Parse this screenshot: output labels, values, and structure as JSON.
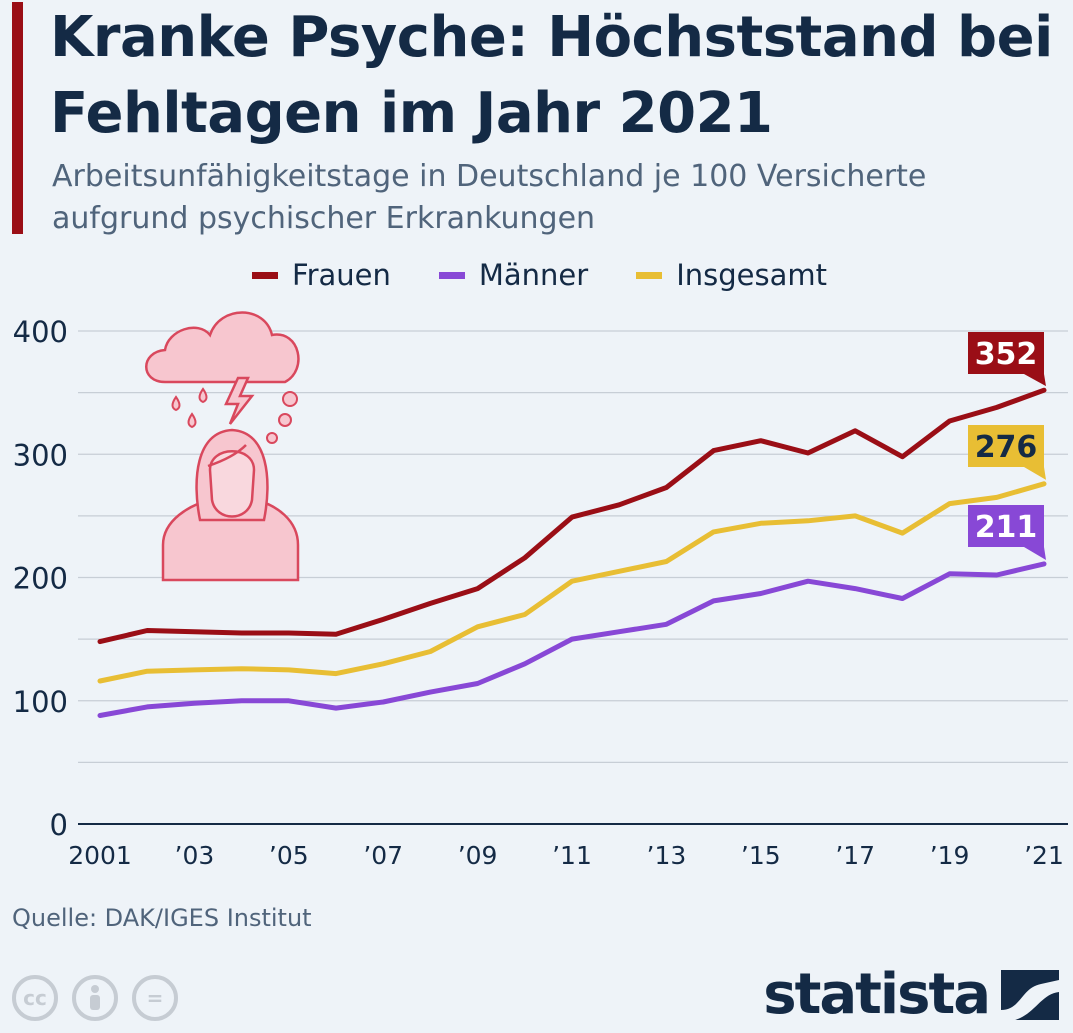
{
  "header": {
    "title": "Kranke Psyche: Höchststand bei Fehltagen im Jahr 2021",
    "subtitle": "Arbeitsunfähigkeitstage in Deutschland je 100 Versicherte aufgrund psychischer Erkrankungen"
  },
  "footer": {
    "source": "Quelle: DAK/IGES Institut",
    "logo": "statista",
    "license_icons": [
      "cc-icon",
      "by-icon",
      "nd-icon"
    ]
  },
  "colors": {
    "accent": "#9a0e16",
    "frauen": "#9a0e16",
    "maenner": "#8848d6",
    "insgesamt": "#e8be34",
    "text": "#142a45",
    "grid": "#c7ced6"
  },
  "chart_data": {
    "type": "line",
    "x": [
      2001,
      2002,
      2003,
      2004,
      2005,
      2006,
      2007,
      2008,
      2009,
      2010,
      2011,
      2012,
      2013,
      2014,
      2015,
      2016,
      2017,
      2018,
      2019,
      2020,
      2021
    ],
    "x_tick_labels": [
      "2001",
      "’03",
      "’05",
      "’07",
      "’09",
      "’11",
      "’13",
      "’15",
      "’17",
      "’19",
      "’21"
    ],
    "x_tick_years": [
      2001,
      2003,
      2005,
      2007,
      2009,
      2011,
      2013,
      2015,
      2017,
      2019,
      2021
    ],
    "y_ticks": [
      0,
      100,
      200,
      300,
      400
    ],
    "ylim": [
      0,
      400
    ],
    "grid": true,
    "legend_position": "top-center",
    "series": [
      {
        "name": "Frauen",
        "color": "#9a0e16",
        "end_label": "352",
        "values": [
          148,
          157,
          156,
          155,
          155,
          154,
          166,
          179,
          191,
          216,
          249,
          259,
          273,
          303,
          311,
          301,
          319,
          298,
          327,
          338,
          352
        ]
      },
      {
        "name": "Männer",
        "color": "#8848d6",
        "end_label": "211",
        "values": [
          88,
          95,
          98,
          100,
          100,
          94,
          99,
          107,
          114,
          130,
          150,
          156,
          162,
          181,
          187,
          197,
          191,
          183,
          203,
          202,
          211
        ]
      },
      {
        "name": "Insgesamt",
        "color": "#e8be34",
        "end_label": "276",
        "values": [
          116,
          124,
          125,
          126,
          125,
          122,
          130,
          140,
          160,
          170,
          197,
          205,
          213,
          237,
          244,
          246,
          250,
          236,
          260,
          265,
          276
        ]
      }
    ]
  }
}
